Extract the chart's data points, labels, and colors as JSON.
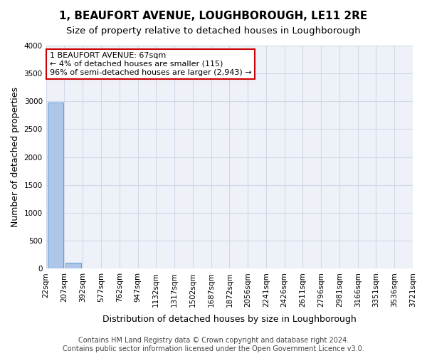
{
  "title": "1, BEAUFORT AVENUE, LOUGHBOROUGH, LE11 2RE",
  "subtitle": "Size of property relative to detached houses in Loughborough",
  "xlabel": "Distribution of detached houses by size in Loughborough",
  "ylabel": "Number of detached properties",
  "bin_labels": [
    "22sqm",
    "207sqm",
    "392sqm",
    "577sqm",
    "762sqm",
    "947sqm",
    "1132sqm",
    "1317sqm",
    "1502sqm",
    "1687sqm",
    "1872sqm",
    "2056sqm",
    "2241sqm",
    "2426sqm",
    "2611sqm",
    "2796sqm",
    "2981sqm",
    "3166sqm",
    "3351sqm",
    "3536sqm",
    "3721sqm"
  ],
  "bar_values": [
    2980,
    105,
    5,
    2,
    1,
    1,
    0,
    0,
    0,
    0,
    0,
    0,
    0,
    0,
    0,
    0,
    0,
    0,
    0,
    0
  ],
  "bar_color": "#aec6e8",
  "bar_edge_color": "#5a9fd4",
  "grid_color": "#d0d8e8",
  "bg_color": "#eef2f8",
  "annotation_text": "1 BEAUFORT AVENUE: 67sqm\n← 4% of detached houses are smaller (115)\n96% of semi-detached houses are larger (2,943) →",
  "annotation_box_color": "#cc0000",
  "ylim": [
    0,
    4000
  ],
  "yticks": [
    0,
    500,
    1000,
    1500,
    2000,
    2500,
    3000,
    3500,
    4000
  ],
  "footnote": "Contains HM Land Registry data © Crown copyright and database right 2024.\nContains public sector information licensed under the Open Government Licence v3.0.",
  "title_fontsize": 11,
  "subtitle_fontsize": 9.5,
  "xlabel_fontsize": 9,
  "ylabel_fontsize": 9,
  "tick_fontsize": 7.5,
  "annotation_fontsize": 8,
  "footnote_fontsize": 7
}
